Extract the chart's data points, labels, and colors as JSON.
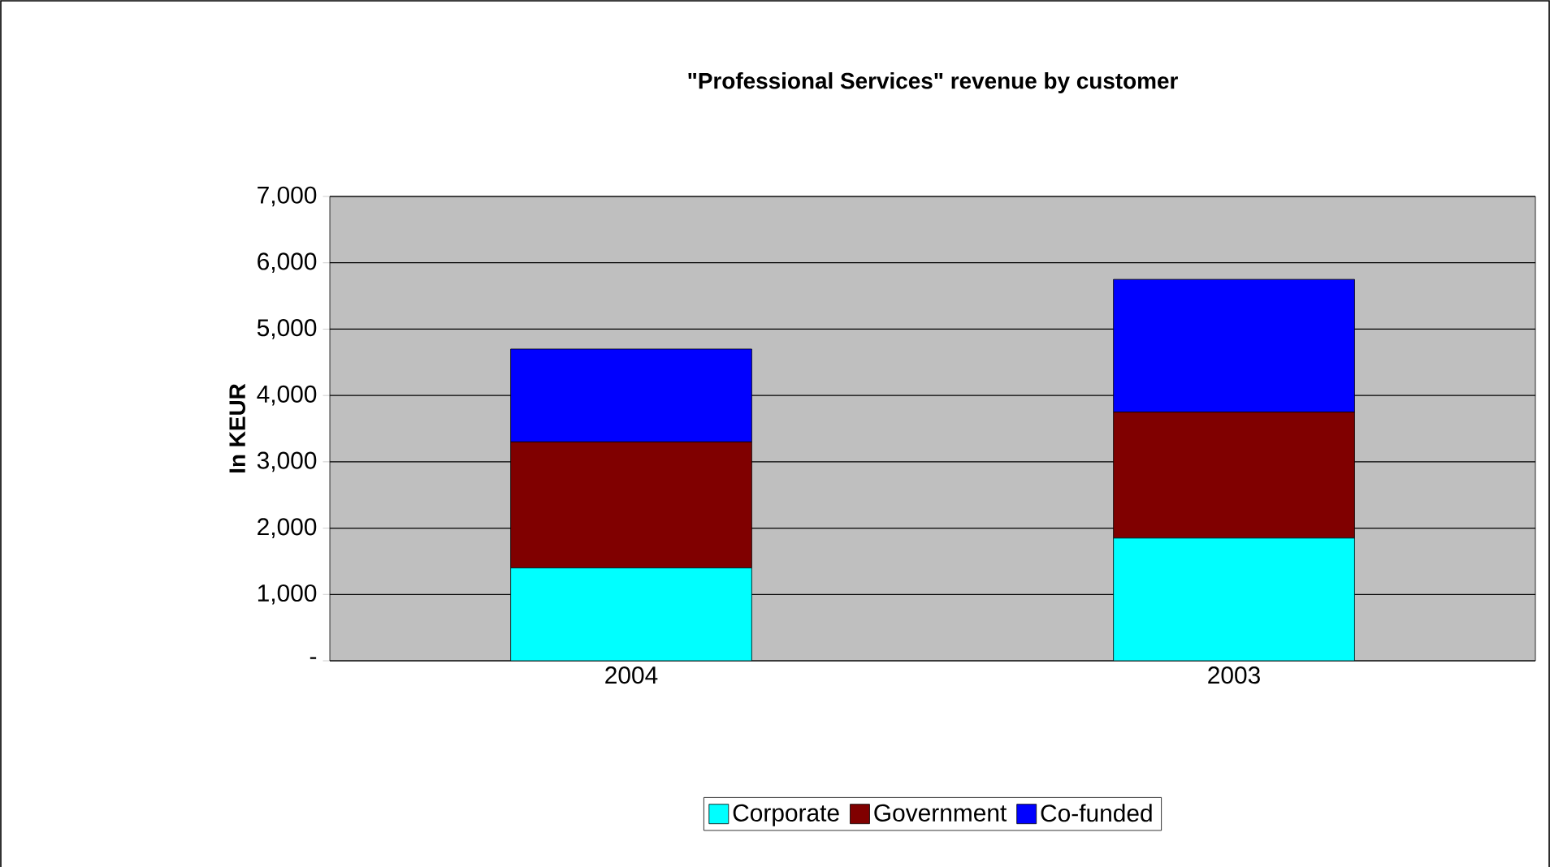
{
  "chart_data": {
    "type": "bar",
    "stacked": true,
    "title": "\"Professional Services\" revenue by customer",
    "ylabel": "In KEUR",
    "categories": [
      "2004",
      "2003"
    ],
    "series": [
      {
        "name": "Corporate",
        "color": "#00ffff",
        "values": [
          1400,
          1850
        ]
      },
      {
        "name": "Government",
        "color": "#800000",
        "values": [
          1900,
          1900
        ]
      },
      {
        "name": "Co-funded",
        "color": "#0000ff",
        "values": [
          1400,
          2000
        ]
      }
    ],
    "ylim": [
      0,
      7000
    ],
    "yticks": [
      {
        "value": 0,
        "label": "-"
      },
      {
        "value": 1000,
        "label": "1,000"
      },
      {
        "value": 2000,
        "label": "2,000"
      },
      {
        "value": 3000,
        "label": "3,000"
      },
      {
        "value": 4000,
        "label": "4,000"
      },
      {
        "value": 5000,
        "label": "5,000"
      },
      {
        "value": 6000,
        "label": "6,000"
      },
      {
        "value": 7000,
        "label": "7,000"
      }
    ],
    "grid": "y",
    "legend": "bottom"
  }
}
